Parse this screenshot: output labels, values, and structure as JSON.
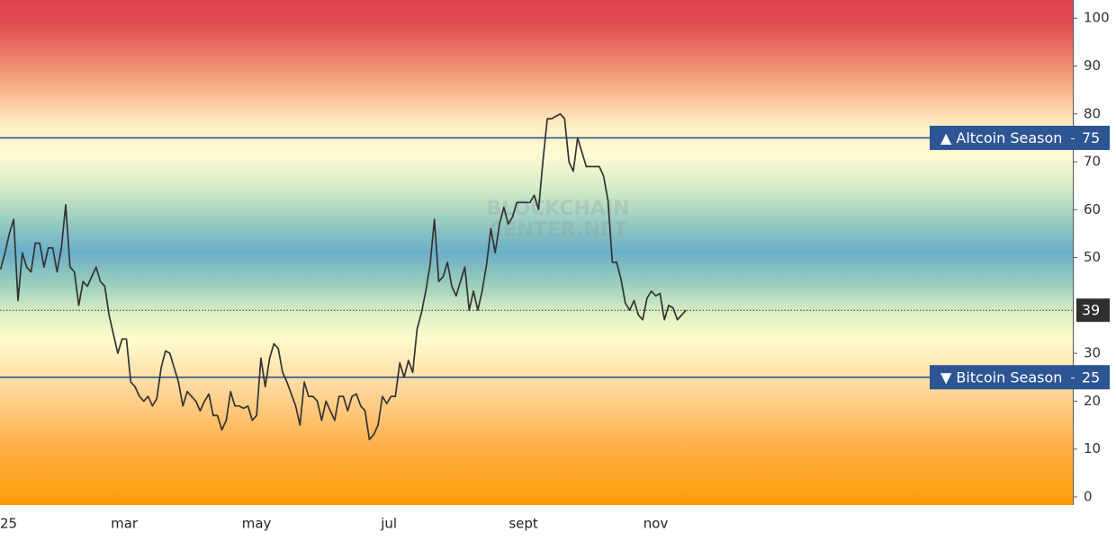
{
  "chart_data": {
    "type": "line",
    "color": "#333333",
    "x": [
      2,
      4,
      6,
      8,
      10,
      12,
      14,
      16,
      18,
      20,
      22,
      24,
      26,
      28,
      30,
      32,
      34,
      36,
      38,
      40,
      42,
      44,
      46,
      48,
      50,
      52,
      54,
      56,
      58,
      60,
      62,
      64,
      66,
      68,
      70,
      72,
      74,
      76,
      78,
      80,
      82,
      84,
      86,
      88,
      90,
      92,
      94,
      96,
      98,
      100,
      102,
      104,
      106,
      108,
      110,
      112,
      114,
      116,
      118,
      120,
      122,
      124,
      126,
      128,
      130,
      132,
      134,
      136,
      138,
      140,
      142,
      144,
      146,
      148,
      150,
      152,
      154,
      156,
      158,
      160,
      162,
      164,
      166,
      168,
      170,
      172,
      174,
      176,
      178,
      180,
      182,
      184,
      186,
      188,
      190,
      192,
      194,
      196,
      198,
      200,
      202,
      204,
      206,
      208,
      210,
      212,
      214,
      216,
      218,
      220,
      222,
      224,
      226,
      228,
      230,
      232,
      234,
      236,
      238,
      240,
      242,
      244,
      246,
      248,
      250,
      252,
      254,
      256,
      258,
      260,
      262,
      264,
      266,
      268,
      270,
      272,
      274,
      276,
      278,
      280,
      282,
      284,
      286,
      288,
      290,
      292,
      294,
      296,
      298,
      300,
      302,
      304,
      306,
      308,
      310,
      312,
      314,
      316,
      318
    ],
    "values": [
      47.5,
      51,
      55,
      58,
      41,
      51,
      48,
      47,
      53,
      53,
      48,
      52,
      52,
      47,
      52,
      61,
      48,
      47,
      40,
      45,
      44,
      46,
      48,
      45,
      44,
      38,
      34,
      30,
      33,
      33,
      24,
      23,
      21,
      20,
      21,
      19,
      20.5,
      27,
      30.5,
      30,
      27,
      24,
      19,
      22,
      21,
      20,
      18,
      20,
      21.5,
      17,
      17,
      14,
      16,
      22,
      19,
      19,
      18.5,
      19,
      16,
      17,
      29,
      23,
      29,
      32,
      31,
      26,
      24,
      21.5,
      19,
      15,
      24,
      21,
      21,
      20,
      16,
      20,
      18,
      16,
      21,
      21,
      18,
      21,
      21.5,
      19,
      18,
      12,
      13,
      15,
      21,
      19.5,
      21,
      21,
      28,
      25,
      28.5,
      26,
      35,
      38.5,
      43,
      48.5,
      58,
      45,
      46,
      49,
      44,
      42,
      45,
      48,
      39,
      43,
      39,
      43,
      48.5,
      56,
      51,
      57,
      60.5,
      57,
      58.5,
      61.5,
      61.5,
      61.5,
      61.5,
      63,
      60,
      70,
      79,
      79,
      79.5,
      80,
      79,
      70,
      68,
      75,
      72,
      69,
      69,
      69,
      69,
      67,
      62,
      49,
      49,
      45.5,
      40.5,
      39,
      41,
      38,
      37,
      41.5,
      43,
      42,
      42.5,
      37,
      40,
      39.5,
      37,
      38,
      39
    ],
    "xlim": [
      1.7,
      496.3
    ],
    "xticks": [
      {
        "value": 0,
        "label": "25"
      },
      {
        "value": 59,
        "label": "mar"
      },
      {
        "value": 120,
        "label": "may"
      },
      {
        "value": 181,
        "label": "jul"
      },
      {
        "value": 243,
        "label": "sept"
      },
      {
        "value": 304,
        "label": "nov"
      }
    ],
    "ylim": [
      -1.7,
      103.8
    ],
    "yticks": [
      0,
      10,
      20,
      30,
      50,
      60,
      70,
      80,
      90,
      100
    ],
    "thresholds": [
      {
        "label": "▲ Altcoin Season",
        "value": 75,
        "color": "#2d5593"
      },
      {
        "label": "▼ Bitcoin Season",
        "value": 25,
        "color": "#2d5593"
      }
    ],
    "current": 39,
    "watermark": [
      "BLOCKCHAIN",
      "CENTER.NET"
    ]
  }
}
